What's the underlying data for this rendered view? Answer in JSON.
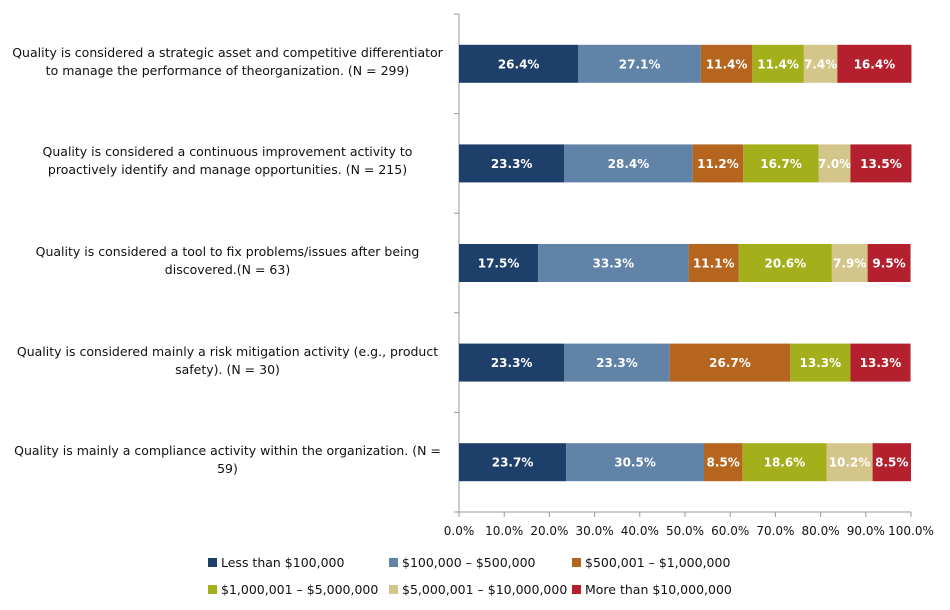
{
  "chart_data": {
    "type": "bar",
    "orientation": "horizontal",
    "stacked": "100%",
    "categories": [
      "Quality is considered a strategic asset and competitive differentiator to manage the performance of theorganization. (N = 299)",
      "Quality is considered a continuous improvement activity to proactively identify and manage opportunities. (N = 215)",
      "Quality is considered a tool to fix problems/issues after being discovered.(N = 63)",
      "Quality is considered mainly a risk mitigation activity (e.g., product safety). (N = 30)",
      "Quality is mainly a compliance activity within the organization. (N = 59)"
    ],
    "category_lines": [
      [
        "Quality is considered a strategic asset and competitive differentiator",
        "to manage the performance of theorganization. (N = 299)"
      ],
      [
        "Quality is considered a continuous improvement activity to",
        "proactively identify and manage opportunities. (N = 215)"
      ],
      [
        "Quality is considered a tool to fix problems/issues after being",
        "discovered.(N = 63)"
      ],
      [
        "Quality is considered mainly a risk mitigation activity (e.g., product",
        "safety). (N = 30)"
      ],
      [
        "Quality is mainly a compliance activity within the organization. (N =",
        "59)"
      ]
    ],
    "series": [
      {
        "name": "Less than $100,000",
        "color": "#1f3f6b",
        "values": [
          26.4,
          23.3,
          17.5,
          23.3,
          23.7
        ]
      },
      {
        "name": "$100,000 – $500,000",
        "color": "#6283a8",
        "values": [
          27.1,
          28.4,
          33.3,
          23.3,
          30.5
        ]
      },
      {
        "name": "$500,001 –  $1,000,000",
        "color": "#b5651d",
        "values": [
          11.4,
          11.2,
          11.1,
          26.7,
          8.5
        ]
      },
      {
        "name": "$1,000,001 –  $5,000,000",
        "color": "#a3b01b",
        "values": [
          11.4,
          16.7,
          20.6,
          13.3,
          18.6
        ]
      },
      {
        "name": "$5,000,001 – $10,000,000",
        "color": "#d4c58a",
        "values": [
          7.4,
          7.0,
          7.9,
          0,
          10.2
        ]
      },
      {
        "name": "More than $10,000,000",
        "color": "#b5202e",
        "values": [
          16.4,
          13.5,
          9.5,
          13.3,
          8.5
        ]
      }
    ],
    "xlim": [
      0,
      100
    ],
    "x_ticks": [
      "0.0%",
      "10.0%",
      "20.0%",
      "30.0%",
      "40.0%",
      "50.0%",
      "60.0%",
      "70.0%",
      "80.0%",
      "90.0%",
      "100.0%"
    ],
    "data_labels": true,
    "grid": false,
    "legend_position": "bottom"
  }
}
